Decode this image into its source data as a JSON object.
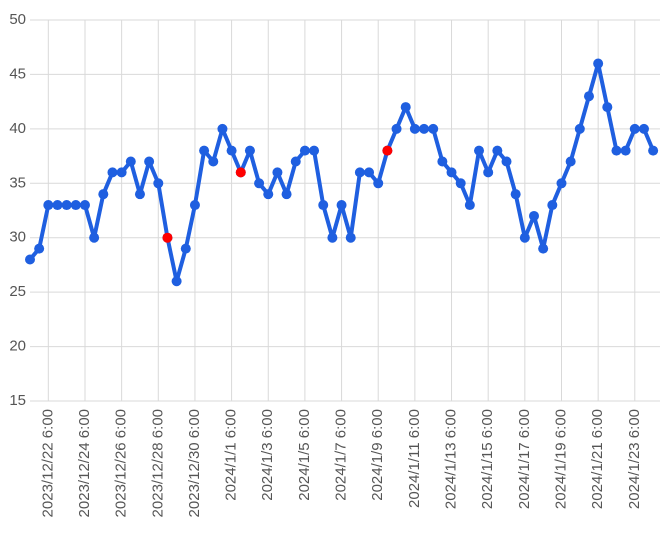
{
  "chart_data": {
    "type": "line",
    "series": [
      {
        "color": "#1f5fe0",
        "x": [
          "2023/12/21 6:00",
          "2023/12/21 18:00",
          "2023/12/22 6:00",
          "2023/12/22 18:00",
          "2023/12/23 6:00",
          "2023/12/23 18:00",
          "2023/12/24 6:00",
          "2023/12/24 18:00",
          "2023/12/25 6:00",
          "2023/12/25 18:00",
          "2023/12/26 6:00",
          "2023/12/26 18:00",
          "2023/12/27 6:00",
          "2023/12/27 18:00",
          "2023/12/28 6:00",
          "2023/12/28 18:00",
          "2023/12/29 6:00",
          "2023/12/29 18:00",
          "2023/12/30 6:00",
          "2023/12/30 18:00",
          "2023/12/31 6:00",
          "2023/12/31 18:00",
          "2024/1/1 6:00",
          "2024/1/1 18:00",
          "2024/1/2 6:00",
          "2024/1/2 18:00",
          "2024/1/3 6:00",
          "2024/1/3 18:00",
          "2024/1/4 6:00",
          "2024/1/4 18:00",
          "2024/1/5 6:00",
          "2024/1/5 18:00",
          "2024/1/6 6:00",
          "2024/1/6 18:00",
          "2024/1/7 6:00",
          "2024/1/7 18:00",
          "2024/1/8 6:00",
          "2024/1/8 18:00",
          "2024/1/9 6:00",
          "2024/1/9 18:00",
          "2024/1/10 6:00",
          "2024/1/10 18:00",
          "2024/1/11 6:00",
          "2024/1/11 18:00",
          "2024/1/12 6:00",
          "2024/1/12 18:00",
          "2024/1/13 6:00",
          "2024/1/13 18:00",
          "2024/1/14 6:00",
          "2024/1/14 18:00",
          "2024/1/15 6:00",
          "2024/1/15 18:00",
          "2024/1/16 6:00",
          "2024/1/16 18:00",
          "2024/1/17 6:00",
          "2024/1/17 18:00",
          "2024/1/18 6:00",
          "2024/1/18 18:00",
          "2024/1/19 6:00",
          "2024/1/19 18:00",
          "2024/1/20 6:00",
          "2024/1/20 18:00",
          "2024/1/21 6:00",
          "2024/1/21 18:00",
          "2024/1/22 6:00",
          "2024/1/22 18:00",
          "2024/1/23 6:00",
          "2024/1/23 18:00",
          "2024/1/24 6:00"
        ],
        "values": [
          28,
          29,
          33,
          33,
          33,
          33,
          33,
          30,
          34,
          36,
          36,
          37,
          34,
          37,
          35,
          30,
          26,
          29,
          33,
          38,
          37,
          40,
          38,
          36,
          38,
          35,
          34,
          36,
          34,
          37,
          38,
          38,
          33,
          30,
          33,
          30,
          36,
          36,
          35,
          38,
          40,
          42,
          40,
          40,
          40,
          37,
          36,
          35,
          33,
          38,
          36,
          38,
          37,
          34,
          30,
          32,
          29,
          33,
          35,
          37,
          40,
          43,
          46,
          42,
          38,
          38,
          40,
          40,
          38
        ]
      },
      {
        "color": "#ff0000",
        "x": [
          "2023/12/28 18:00",
          "2024/1/1 18:00",
          "2024/1/9 18:00"
        ],
        "values": [
          30,
          36,
          38
        ]
      }
    ],
    "xlim": [
      "2023/12/21 6:00",
      "2024/1/24 15:00"
    ],
    "xticks": [
      "2023/12/22 6:00",
      "2023/12/24 6:00",
      "2023/12/26 6:00",
      "2023/12/28 6:00",
      "2023/12/30 6:00",
      "2024/1/1 6:00",
      "2024/1/3 6:00",
      "2024/1/5 6:00",
      "2024/1/7 6:00",
      "2024/1/9 6:00",
      "2024/1/11 6:00",
      "2024/1/13 6:00",
      "2024/1/15 6:00",
      "2024/1/17 6:00",
      "2024/1/19 6:00",
      "2024/1/21 6:00",
      "2024/1/23 6:00"
    ],
    "ylim": [
      15,
      50
    ],
    "yticks": [
      15,
      20,
      25,
      30,
      35,
      40,
      45,
      50
    ],
    "grid": true
  }
}
